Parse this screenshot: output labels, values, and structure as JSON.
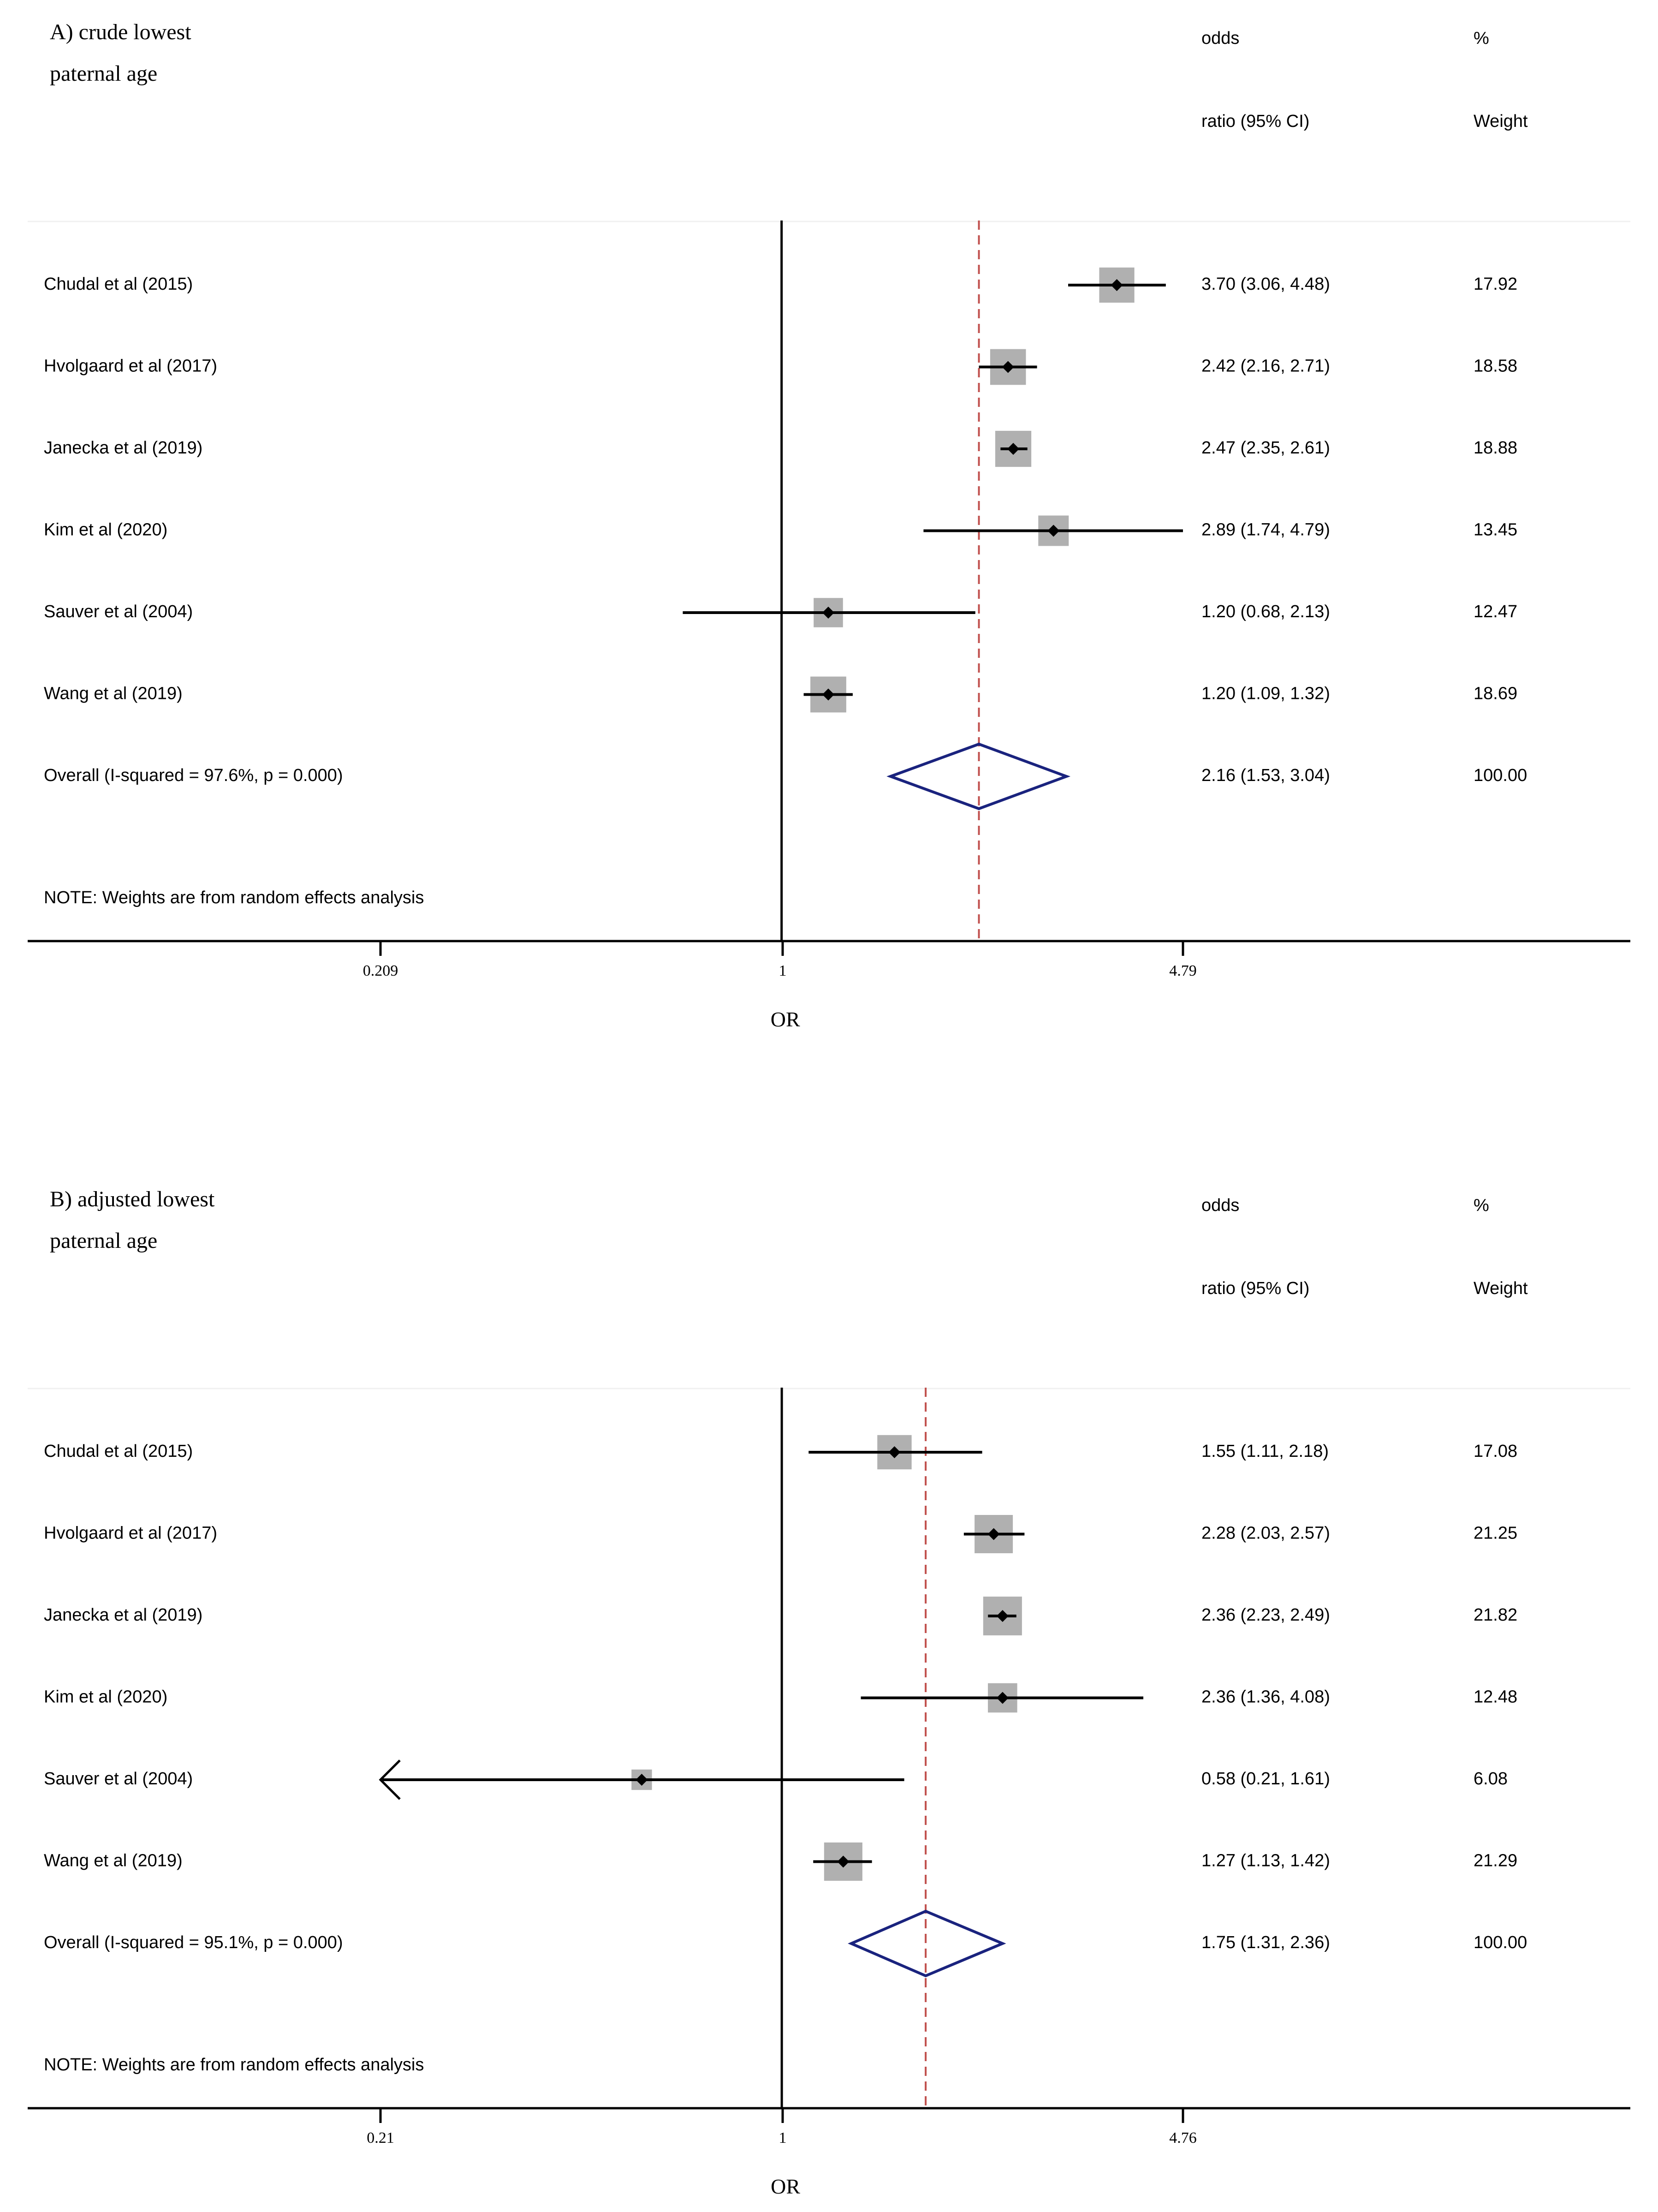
{
  "panels": [
    {
      "title_lines": [
        "A) crude lowest",
        "paternal age"
      ],
      "header": {
        "col1_line1": "odds",
        "col1_line2": "ratio (95% CI)",
        "col2_line1": "%",
        "col2_line2": "Weight"
      },
      "note": "NOTE: Weights are from random effects analysis",
      "xlabel": "OR",
      "ticks": [
        {
          "value": 0.209,
          "label": "0.209"
        },
        {
          "value": 1,
          "label": "1"
        },
        {
          "value": 4.79,
          "label": "4.79"
        }
      ],
      "pooled_or": 2.16,
      "colors": {
        "line": "#000000",
        "box": "#b0b0b0",
        "diamond": "#1a237e",
        "ref": "#c0504d"
      },
      "studies": [
        {
          "label": "Chudal  et al (2015)",
          "or": 3.7,
          "lo": 3.06,
          "hi": 4.48,
          "ci_text": "3.70 (3.06, 4.48)",
          "weight": 17.92,
          "weight_text": "17.92"
        },
        {
          "label": "Hvolgaard et al (2017)",
          "or": 2.42,
          "lo": 2.16,
          "hi": 2.71,
          "ci_text": "2.42 (2.16, 2.71)",
          "weight": 18.58,
          "weight_text": "18.58"
        },
        {
          "label": "Janecka et al (2019)",
          "or": 2.47,
          "lo": 2.35,
          "hi": 2.61,
          "ci_text": "2.47 (2.35, 2.61)",
          "weight": 18.88,
          "weight_text": "18.88"
        },
        {
          "label": "Kim et al (2020)",
          "or": 2.89,
          "lo": 1.74,
          "hi": 4.79,
          "ci_text": "2.89 (1.74, 4.79)",
          "weight": 13.45,
          "weight_text": "13.45"
        },
        {
          "label": "Sauver et al (2004)",
          "or": 1.2,
          "lo": 0.68,
          "hi": 2.13,
          "ci_text": "1.20 (0.68, 2.13)",
          "weight": 12.47,
          "weight_text": "12.47"
        },
        {
          "label": "Wang et al (2019)",
          "or": 1.2,
          "lo": 1.09,
          "hi": 1.32,
          "ci_text": "1.20 (1.09, 1.32)",
          "weight": 18.69,
          "weight_text": "18.69"
        }
      ],
      "overall": {
        "label": "Overall  (I-squared = 97.6%, p = 0.000)",
        "or": 2.16,
        "lo": 1.53,
        "hi": 3.04,
        "ci_text": "2.16 (1.53, 3.04)",
        "weight_text": "100.00"
      }
    },
    {
      "title_lines": [
        "B) adjusted lowest",
        "paternal age"
      ],
      "header": {
        "col1_line1": "odds",
        "col1_line2": "ratio (95% CI)",
        "col2_line1": "%",
        "col2_line2": "Weight"
      },
      "note": "NOTE: Weights are from random effects analysis",
      "xlabel": "OR",
      "ticks": [
        {
          "value": 0.21,
          "label": "0.21"
        },
        {
          "value": 1,
          "label": "1"
        },
        {
          "value": 4.76,
          "label": "4.76"
        }
      ],
      "pooled_or": 1.75,
      "colors": {
        "line": "#000000",
        "box": "#b0b0b0",
        "diamond": "#1a237e",
        "ref": "#c0504d"
      },
      "studies": [
        {
          "label": "Chudal  et al (2015)",
          "or": 1.55,
          "lo": 1.11,
          "hi": 2.18,
          "ci_text": "1.55 (1.11, 2.18)",
          "weight": 17.08,
          "weight_text": "17.08"
        },
        {
          "label": "Hvolgaard et al (2017)",
          "or": 2.28,
          "lo": 2.03,
          "hi": 2.57,
          "ci_text": "2.28 (2.03, 2.57)",
          "weight": 21.25,
          "weight_text": "21.25"
        },
        {
          "label": "Janecka et al (2019)",
          "or": 2.36,
          "lo": 2.23,
          "hi": 2.49,
          "ci_text": "2.36 (2.23, 2.49)",
          "weight": 21.82,
          "weight_text": "21.82"
        },
        {
          "label": "Kim et al (2020)",
          "or": 2.36,
          "lo": 1.36,
          "hi": 4.08,
          "ci_text": "2.36 (1.36, 4.08)",
          "weight": 12.48,
          "weight_text": "12.48"
        },
        {
          "label": "Sauver et al (2004)",
          "or": 0.58,
          "lo": 0.21,
          "hi": 1.61,
          "ci_text": "0.58 (0.21, 1.61)",
          "weight": 6.08,
          "weight_text": "6.08",
          "lo_truncated": true
        },
        {
          "label": "Wang et al (2019)",
          "or": 1.27,
          "lo": 1.13,
          "hi": 1.42,
          "ci_text": "1.27 (1.13, 1.42)",
          "weight": 21.29,
          "weight_text": "21.29"
        }
      ],
      "overall": {
        "label": "Overall  (I-squared = 95.1%, p = 0.000)",
        "or": 1.75,
        "lo": 1.31,
        "hi": 2.36,
        "ci_text": "1.75 (1.31, 2.36)",
        "weight_text": "100.00"
      }
    }
  ],
  "chart_data": [
    {
      "type": "scatter",
      "title": "A) crude lowest paternal age",
      "xlabel": "OR",
      "x_scale": "log",
      "xlim": [
        0.209,
        4.79
      ],
      "categories": [
        "Chudal  et al (2015)",
        "Hvolgaard et al (2017)",
        "Janecka et al (2019)",
        "Kim et al (2020)",
        "Sauver et al (2004)",
        "Wang et al (2019)",
        "Overall  (I-squared = 97.6%, p = 0.000)"
      ],
      "series": [
        {
          "name": "odds ratio (95% CI)",
          "values": [
            3.7,
            2.42,
            2.47,
            2.89,
            1.2,
            1.2,
            2.16
          ],
          "lower": [
            3.06,
            2.16,
            2.35,
            1.74,
            0.68,
            1.09,
            1.53
          ],
          "upper": [
            4.48,
            2.71,
            2.61,
            4.79,
            2.13,
            1.32,
            3.04
          ]
        },
        {
          "name": "% Weight",
          "values": [
            17.92,
            18.58,
            18.88,
            13.45,
            12.47,
            18.69,
            100.0
          ]
        }
      ],
      "grid": false
    },
    {
      "type": "scatter",
      "title": "B) adjusted lowest paternal age",
      "xlabel": "OR",
      "x_scale": "log",
      "xlim": [
        0.21,
        4.76
      ],
      "categories": [
        "Chudal  et al (2015)",
        "Hvolgaard et al (2017)",
        "Janecka et al (2019)",
        "Kim et al (2020)",
        "Sauver et al (2004)",
        "Wang et al (2019)",
        "Overall  (I-squared = 95.1%, p = 0.000)"
      ],
      "series": [
        {
          "name": "odds ratio (95% CI)",
          "values": [
            1.55,
            2.28,
            2.36,
            2.36,
            0.58,
            1.27,
            1.75
          ],
          "lower": [
            1.11,
            2.03,
            2.23,
            1.36,
            0.21,
            1.13,
            1.31
          ],
          "upper": [
            2.18,
            2.57,
            2.49,
            4.08,
            1.61,
            1.42,
            2.36
          ]
        },
        {
          "name": "% Weight",
          "values": [
            17.08,
            21.25,
            21.82,
            12.48,
            6.08,
            21.29,
            100.0
          ]
        }
      ],
      "grid": false
    }
  ]
}
